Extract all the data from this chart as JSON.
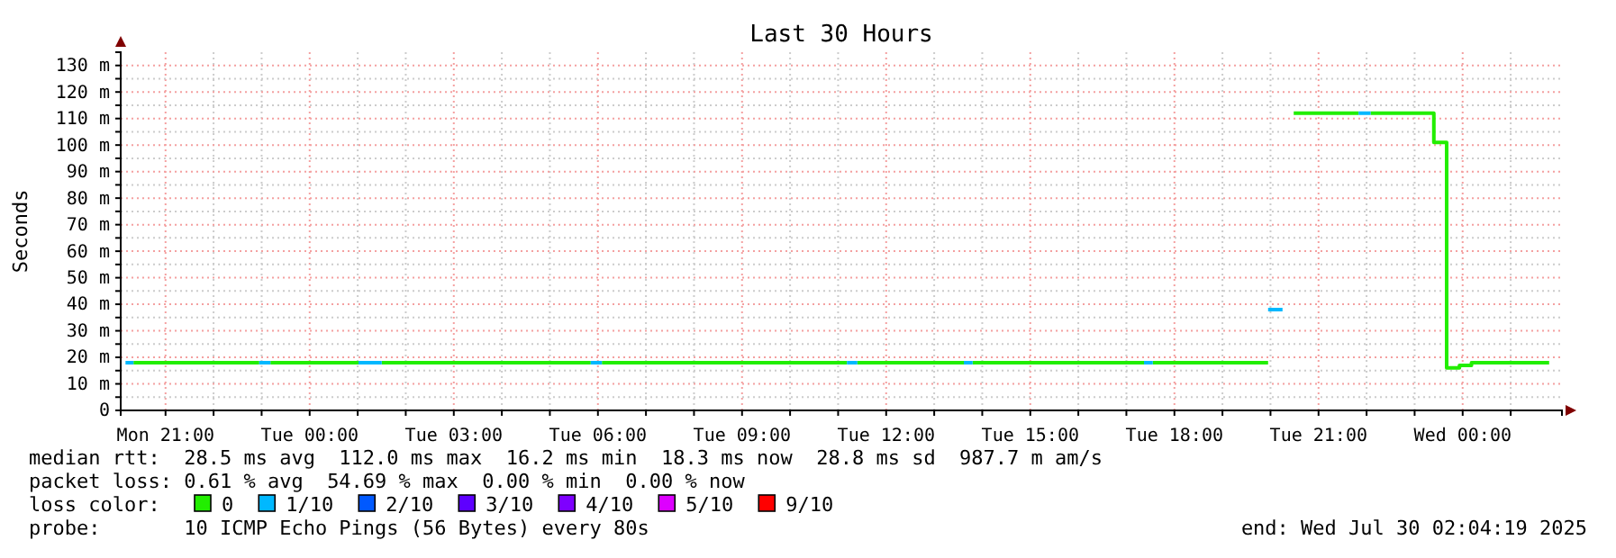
{
  "chart_data": {
    "type": "step",
    "title": "Last 30 Hours",
    "ylabel": "Seconds",
    "legend_title": "loss color:",
    "xlim": [
      "2025-07-28T20:04",
      "2025-07-30T02:04"
    ],
    "xticks": [
      {
        "value": "2025-07-28T21:00",
        "label": "Mon 21:00"
      },
      {
        "value": "2025-07-28T22:00",
        "label": null
      },
      {
        "value": "2025-07-28T23:00",
        "label": null
      },
      {
        "value": "2025-07-29T00:00",
        "label": "Tue 00:00"
      },
      {
        "value": "2025-07-29T01:00",
        "label": null
      },
      {
        "value": "2025-07-29T02:00",
        "label": null
      },
      {
        "value": "2025-07-29T03:00",
        "label": "Tue 03:00"
      },
      {
        "value": "2025-07-29T04:00",
        "label": null
      },
      {
        "value": "2025-07-29T05:00",
        "label": null
      },
      {
        "value": "2025-07-29T06:00",
        "label": "Tue 06:00"
      },
      {
        "value": "2025-07-29T07:00",
        "label": null
      },
      {
        "value": "2025-07-29T08:00",
        "label": null
      },
      {
        "value": "2025-07-29T09:00",
        "label": "Tue 09:00"
      },
      {
        "value": "2025-07-29T10:00",
        "label": null
      },
      {
        "value": "2025-07-29T11:00",
        "label": null
      },
      {
        "value": "2025-07-29T12:00",
        "label": "Tue 12:00"
      },
      {
        "value": "2025-07-29T13:00",
        "label": null
      },
      {
        "value": "2025-07-29T14:00",
        "label": null
      },
      {
        "value": "2025-07-29T15:00",
        "label": "Tue 15:00"
      },
      {
        "value": "2025-07-29T16:00",
        "label": null
      },
      {
        "value": "2025-07-29T17:00",
        "label": null
      },
      {
        "value": "2025-07-29T18:00",
        "label": "Tue 18:00"
      },
      {
        "value": "2025-07-29T19:00",
        "label": null
      },
      {
        "value": "2025-07-29T20:00",
        "label": null
      },
      {
        "value": "2025-07-29T21:00",
        "label": "Tue 21:00"
      },
      {
        "value": "2025-07-29T22:00",
        "label": null
      },
      {
        "value": "2025-07-29T23:00",
        "label": null
      },
      {
        "value": "2025-07-30T00:00",
        "label": "Wed 00:00"
      },
      {
        "value": "2025-07-30T01:00",
        "label": null
      }
    ],
    "ylim": [
      0,
      135
    ],
    "yticks": [
      {
        "value": 0,
        "label": "0"
      },
      {
        "value": 5,
        "label": null
      },
      {
        "value": 10,
        "label": "10 m"
      },
      {
        "value": 15,
        "label": null
      },
      {
        "value": 20,
        "label": "20 m"
      },
      {
        "value": 25,
        "label": null
      },
      {
        "value": 30,
        "label": "30 m"
      },
      {
        "value": 35,
        "label": null
      },
      {
        "value": 40,
        "label": "40 m"
      },
      {
        "value": 45,
        "label": null
      },
      {
        "value": 50,
        "label": "50 m"
      },
      {
        "value": 55,
        "label": null
      },
      {
        "value": 60,
        "label": "60 m"
      },
      {
        "value": 65,
        "label": null
      },
      {
        "value": 70,
        "label": "70 m"
      },
      {
        "value": 75,
        "label": null
      },
      {
        "value": 80,
        "label": "80 m"
      },
      {
        "value": 85,
        "label": null
      },
      {
        "value": 90,
        "label": "90 m"
      },
      {
        "value": 95,
        "label": null
      },
      {
        "value": 100,
        "label": "100 m"
      },
      {
        "value": 105,
        "label": null
      },
      {
        "value": 110,
        "label": "110 m"
      },
      {
        "value": 115,
        "label": null
      },
      {
        "value": 120,
        "label": "120 m"
      },
      {
        "value": 125,
        "label": null
      },
      {
        "value": 130,
        "label": "130 m"
      }
    ],
    "grid": true,
    "legend": "bottom",
    "series": [
      {
        "name": "0",
        "color": "#22ee00",
        "x": [
          "2025-07-28T20:20",
          "2025-07-28T22:57",
          "2025-07-28T23:11",
          "2025-07-29T01:01",
          "2025-07-29T01:30",
          "2025-07-29T05:51",
          "2025-07-29T06:05",
          "2025-07-29T11:11",
          "2025-07-29T11:24",
          "2025-07-29T13:37",
          "2025-07-29T13:48",
          "2025-07-29T17:22",
          "2025-07-29T17:33",
          "2025-07-29T19:57",
          "2025-07-29T20:29",
          "2025-07-29T21:50",
          "2025-07-29T22:05",
          "2025-07-29T23:24",
          "2025-07-29T23:40",
          "2025-07-29T23:56",
          "2025-07-30T00:11",
          "2025-07-30T01:48"
        ],
        "values": [
          18,
          null,
          18,
          null,
          18,
          null,
          18,
          null,
          18,
          null,
          18,
          null,
          18,
          null,
          112,
          null,
          112,
          101,
          16,
          17,
          18,
          18
        ]
      },
      {
        "name": "1/10",
        "color": "#00b8ff",
        "x": [
          "2025-07-28T20:10",
          "2025-07-28T20:20",
          "2025-07-28T22:57",
          "2025-07-28T23:11",
          "2025-07-29T01:01",
          "2025-07-29T01:30",
          "2025-07-29T05:51",
          "2025-07-29T06:05",
          "2025-07-29T11:11",
          "2025-07-29T11:24",
          "2025-07-29T13:37",
          "2025-07-29T13:48",
          "2025-07-29T17:22",
          "2025-07-29T17:33",
          "2025-07-29T19:57",
          "2025-07-29T20:15",
          "2025-07-29T21:50",
          "2025-07-29T22:05"
        ],
        "values": [
          18,
          null,
          18,
          null,
          18,
          null,
          18,
          null,
          18,
          null,
          18,
          null,
          18,
          null,
          38,
          null,
          112,
          112
        ]
      },
      {
        "name": "2/10",
        "color": "#0059ff"
      },
      {
        "name": "3/10",
        "color": "#5e00ff"
      },
      {
        "name": "4/10",
        "color": "#7e00ff"
      },
      {
        "name": "5/10",
        "color": "#dd00ff"
      },
      {
        "name": "9/10",
        "color": "#ff0000"
      }
    ],
    "annotations": [
      "median rtt:  28.5 ms avg  112.0 ms max  16.2 ms min  18.3 ms now  28.8 ms sd  987.7 m am/s",
      "packet loss: 0.61 % avg  54.69 % max  0.00 % min  0.00 % now",
      "probe:       10 ICMP Echo Pings (56 Bytes) every 80s",
      "end: Wed Jul 30 02:04:19 2025"
    ]
  }
}
